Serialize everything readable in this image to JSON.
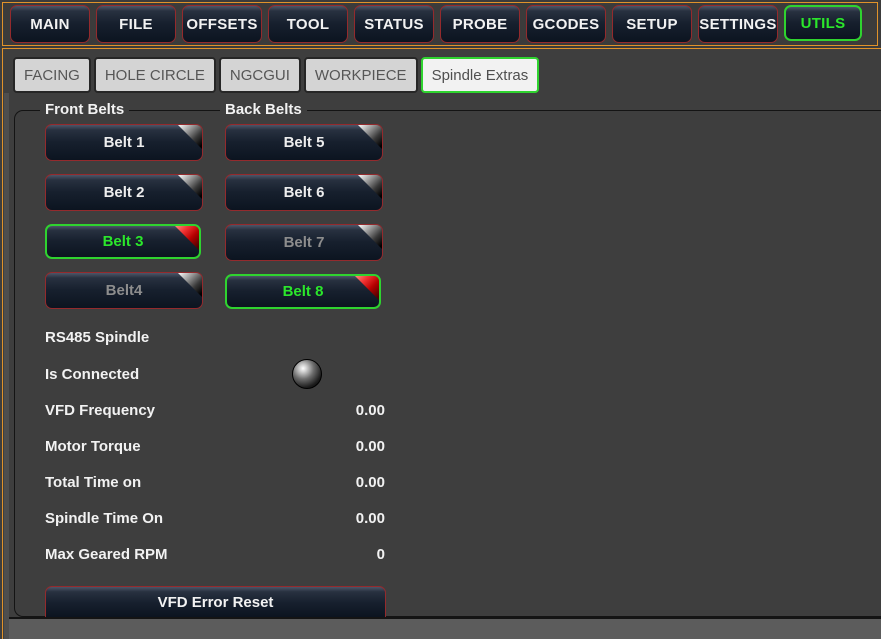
{
  "topbar": {
    "items": [
      {
        "label": "MAIN",
        "active": false
      },
      {
        "label": "FILE",
        "active": false
      },
      {
        "label": "OFFSETS",
        "active": false
      },
      {
        "label": "TOOL",
        "active": false
      },
      {
        "label": "STATUS",
        "active": false
      },
      {
        "label": "PROBE",
        "active": false
      },
      {
        "label": "GCODES",
        "active": false
      },
      {
        "label": "SETUP",
        "active": false
      },
      {
        "label": "SETTINGS",
        "active": false
      },
      {
        "label": "UTILS",
        "active": true
      }
    ]
  },
  "tabs": {
    "items": [
      {
        "label": "FACING",
        "selected": false
      },
      {
        "label": "HOLE CIRCLE",
        "selected": false
      },
      {
        "label": "NGCGUI",
        "selected": false
      },
      {
        "label": "WORKPIECE",
        "selected": false
      },
      {
        "label": "Spindle Extras",
        "selected": true
      }
    ]
  },
  "belts": {
    "front": {
      "title": "Front Belts",
      "buttons": [
        {
          "label": "Belt 1",
          "state": "normal"
        },
        {
          "label": "Belt 2",
          "state": "normal"
        },
        {
          "label": "Belt 3",
          "state": "active"
        },
        {
          "label": "Belt4",
          "state": "dim"
        }
      ]
    },
    "back": {
      "title": "Back Belts",
      "buttons": [
        {
          "label": "Belt 5",
          "state": "normal"
        },
        {
          "label": "Belt 6",
          "state": "normal"
        },
        {
          "label": "Belt 7",
          "state": "dim"
        },
        {
          "label": "Belt 8",
          "state": "active"
        }
      ]
    }
  },
  "rs485": {
    "title": "RS485 Spindle",
    "connected_label": "Is Connected",
    "connected_led": "off",
    "stats": [
      {
        "label": "VFD Frequency",
        "value": "0.00"
      },
      {
        "label": "Motor Torque",
        "value": "0.00"
      },
      {
        "label": "Total Time on",
        "value": "0.00"
      },
      {
        "label": "Spindle Time On",
        "value": "0.00"
      },
      {
        "label": "Max Geared RPM",
        "value": "0"
      }
    ],
    "reset_label": "VFD Error Reset"
  },
  "colors": {
    "accent_orange": "#e0922a",
    "active_green": "#2be62b",
    "green_border": "#2fd32f",
    "button_border_red": "#942a2d",
    "panel_bg": "#3e3e3e"
  }
}
